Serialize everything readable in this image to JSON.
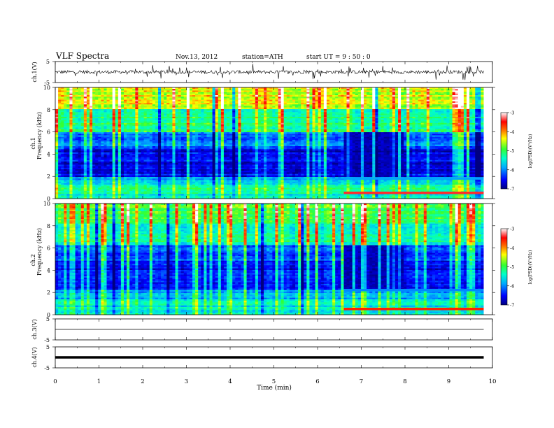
{
  "header": {
    "title": "VLF  Spectra",
    "date": "Nov.13, 2012",
    "station": "station=ATH",
    "start": "start  UT  =   9 : 50 : 0"
  },
  "chart_data": [
    {
      "type": "line",
      "panel": "ch1-waveform",
      "ylabel": "ch.1(V)",
      "yticks": [
        "5",
        "-5"
      ],
      "ylim": [
        -5,
        5
      ],
      "xlim": [
        0,
        10
      ],
      "baseline_level": 0,
      "data_extent_min": 9.8,
      "color": "#000000"
    },
    {
      "type": "heatmap",
      "panel": "ch1-spectrogram",
      "channel_label": "ch.1",
      "ylabel": "Frequency  (kHz)",
      "yticks": [
        "0",
        "2",
        "4",
        "6",
        "8",
        "10"
      ],
      "ylim": [
        0,
        10
      ],
      "xlim": [
        0,
        10
      ],
      "data_extent_min": 9.8,
      "colorbar": {
        "label": "log(PSD)(V²/Hz)",
        "ticks": [
          "-3",
          "-4",
          "-5",
          "-6",
          "-7"
        ],
        "range": [
          -7,
          -3
        ],
        "colors": [
          "#000080",
          "#0000ff",
          "#00aaff",
          "#00ffcc",
          "#33ff33",
          "#ffff00",
          "#ff6600",
          "#ff0000",
          "#ffffff"
        ]
      },
      "bands": [
        {
          "f0": 0.0,
          "f1": 0.6,
          "level": -5.4
        },
        {
          "f0": 0.6,
          "f1": 1.2,
          "level": -5.3
        },
        {
          "f0": 1.2,
          "f1": 2.0,
          "level": -5.7
        },
        {
          "f0": 2.0,
          "f1": 4.5,
          "level": -6.6
        },
        {
          "f0": 4.5,
          "f1": 6.0,
          "level": -6.1
        },
        {
          "f0": 6.0,
          "f1": 8.0,
          "level": -5.2
        },
        {
          "f0": 8.0,
          "f1": 10.0,
          "level": -4.4
        }
      ],
      "features": [
        {
          "kind": "emission-line",
          "freq_khz": 0.5,
          "t0_min": 6.6,
          "t1_min": 9.8,
          "level": -3.4
        },
        {
          "kind": "emission-line",
          "freq_khz": 1.8,
          "t0_min": 6.6,
          "t1_min": 9.8,
          "level": -5.9
        },
        {
          "kind": "quiet-period",
          "t0_min": 6.6,
          "t1_min": 8.0,
          "f0_khz": 2.0,
          "f1_khz": 6.0,
          "level": -6.8
        }
      ]
    },
    {
      "type": "heatmap",
      "panel": "ch2-spectrogram",
      "channel_label": "ch.2",
      "ylabel": "Frequency  (kHz)",
      "yticks": [
        "0",
        "2",
        "4",
        "6",
        "8",
        "10"
      ],
      "ylim": [
        0,
        10
      ],
      "xlim": [
        0,
        10
      ],
      "data_extent_min": 9.8,
      "colorbar": {
        "label": "log(PSD)(V²/Hz)",
        "ticks": [
          "-3",
          "-4",
          "-5",
          "-6",
          "-7"
        ],
        "range": [
          -7,
          -3
        ],
        "colors": [
          "#000080",
          "#0000ff",
          "#00aaff",
          "#00ffcc",
          "#33ff33",
          "#ffff00",
          "#ff6600",
          "#ff0000",
          "#ffffff"
        ]
      },
      "bands": [
        {
          "f0": 0.0,
          "f1": 0.6,
          "level": -5.6
        },
        {
          "f0": 0.6,
          "f1": 1.4,
          "level": -5.5
        },
        {
          "f0": 1.4,
          "f1": 2.2,
          "level": -5.9
        },
        {
          "f0": 2.2,
          "f1": 4.8,
          "level": -6.5
        },
        {
          "f0": 4.8,
          "f1": 6.2,
          "level": -6.2
        },
        {
          "f0": 6.2,
          "f1": 8.2,
          "level": -5.3
        },
        {
          "f0": 8.2,
          "f1": 10.0,
          "level": -4.9
        }
      ],
      "features": [
        {
          "kind": "emission-line",
          "freq_khz": 0.5,
          "t0_min": 6.6,
          "t1_min": 9.8,
          "level": -3.6
        },
        {
          "kind": "emission-line",
          "freq_khz": 2.2,
          "t0_min": 6.6,
          "t1_min": 9.8,
          "level": -6.0
        },
        {
          "kind": "quiet-period",
          "t0_min": 6.6,
          "t1_min": 8.0,
          "f0_khz": 2.2,
          "f1_khz": 6.2,
          "level": -6.8
        }
      ]
    },
    {
      "type": "line",
      "panel": "ch3-waveform",
      "ylabel": "ch.3(V)",
      "yticks": [
        "5",
        "-5"
      ],
      "ylim": [
        -5,
        5
      ],
      "xlim": [
        0,
        10
      ],
      "baseline_level": 0,
      "data_extent_min": 9.8,
      "color": "#000000"
    },
    {
      "type": "line",
      "panel": "ch4-waveform",
      "ylabel": "ch.4(V)",
      "yticks": [
        "5",
        "-5"
      ],
      "ylim": [
        -5,
        5
      ],
      "xlim": [
        0,
        10
      ],
      "baseline_level": 0,
      "data_extent_min": 9.8,
      "color": "#000000"
    }
  ],
  "xaxis": {
    "label": "Time  (min)",
    "ticks": [
      "0",
      "1",
      "2",
      "3",
      "4",
      "5",
      "6",
      "7",
      "8",
      "9",
      "10"
    ],
    "range": [
      0,
      10
    ]
  }
}
